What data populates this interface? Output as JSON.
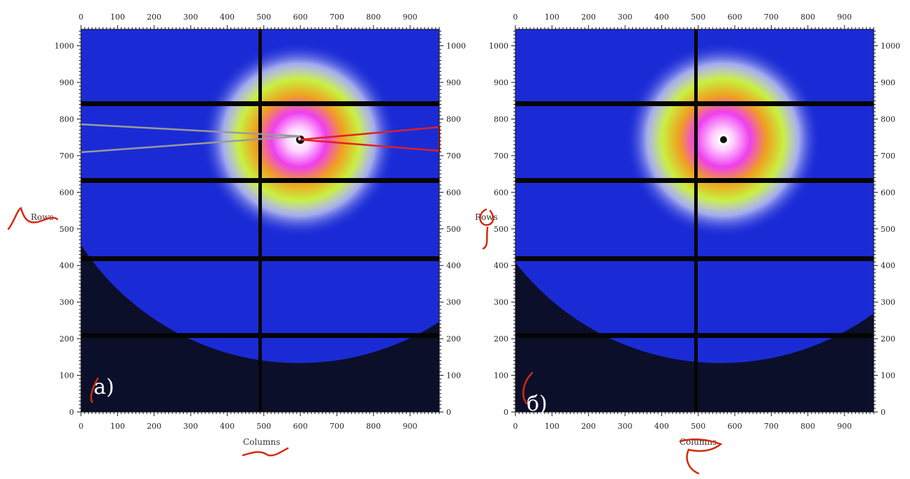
{
  "panels": [
    {
      "id": "a",
      "letter": "a)",
      "x_axis_title": "Columns",
      "y_axis_title": "Rows",
      "x_ticks": [
        "0",
        "100",
        "200",
        "300",
        "400",
        "500",
        "600",
        "700",
        "800",
        "900"
      ],
      "y_ticks": [
        "0",
        "100",
        "200",
        "300",
        "400",
        "500",
        "600",
        "700",
        "800",
        "900",
        "1000"
      ],
      "has_sector_overlay": true,
      "overlay_colors": {
        "left_sector": "#9a9a9a",
        "right_sector": "#e02020"
      }
    },
    {
      "id": "b",
      "letter": "б)",
      "x_axis_title": "Columns",
      "y_axis_title": "Rows",
      "x_ticks": [
        "0",
        "100",
        "200",
        "300",
        "400",
        "500",
        "600",
        "700",
        "800",
        "900"
      ],
      "y_ticks": [
        "0",
        "100",
        "200",
        "300",
        "400",
        "500",
        "600",
        "700",
        "800",
        "900",
        "1000"
      ],
      "has_sector_overlay": false
    }
  ],
  "colors": {
    "background_dark": "#0b0f2a",
    "detector_blue": "#1a2bd6",
    "ring_yellow_green": "#c8f040",
    "ring_orange": "#f0a020",
    "core_magenta": "#ef3ff0",
    "beamstop_gap": "#050505",
    "annotation_red": "#d42a10"
  }
}
